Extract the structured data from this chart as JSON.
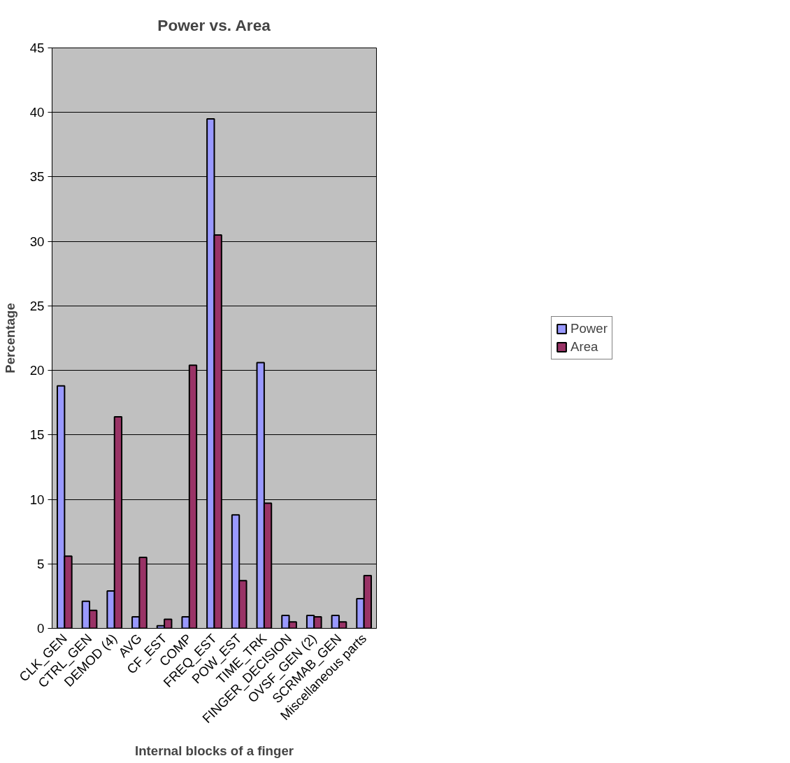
{
  "chart_data": {
    "type": "bar",
    "title": "Power vs. Area",
    "xlabel": "Internal blocks of a finger",
    "ylabel": "Percentage",
    "categories": [
      "CLK_GEN",
      "CTRL_GEN",
      "DEMOD (4)",
      "AVG",
      "CF_EST",
      "COMP",
      "FREQ_EST",
      "POW_EST",
      "TIME_TRK",
      "FINGER_DECISION",
      "OVSF_GEN (2)",
      "SCRMAB_GEN",
      "Miscellaneous parts"
    ],
    "series": [
      {
        "name": "Power",
        "color": "#9999ff",
        "values": [
          18.8,
          2.1,
          2.9,
          0.9,
          0.2,
          0.9,
          39.5,
          8.8,
          20.6,
          1.0,
          1.0,
          1.0,
          2.3
        ]
      },
      {
        "name": "Area",
        "color": "#993366",
        "values": [
          5.6,
          1.4,
          16.4,
          5.5,
          0.7,
          20.4,
          30.5,
          3.7,
          9.7,
          0.5,
          0.9,
          0.5,
          4.1
        ]
      }
    ],
    "ylim": [
      0,
      45
    ],
    "yticks": [
      0,
      5,
      10,
      15,
      20,
      25,
      30,
      35,
      40,
      45
    ],
    "grid": "y",
    "legend": "right"
  }
}
